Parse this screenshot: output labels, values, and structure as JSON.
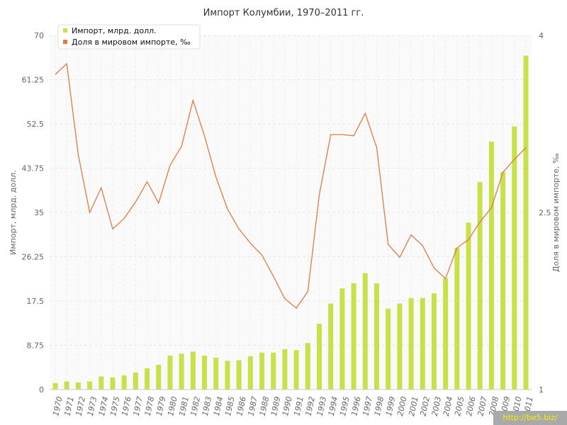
{
  "chart_data": {
    "type": "bar",
    "title": "Импорт Колумбии, 1970–2011 гг.",
    "ylabel_left": "Импорт, млрд. долл.",
    "ylabel_right": "Доля в мировом импорте, ‰",
    "ylim_left": [
      0,
      70
    ],
    "ylim_right": [
      1,
      4
    ],
    "yticks_left": [
      "0",
      "8.75",
      "17.5",
      "26.25",
      "35",
      "43.75",
      "52.5",
      "61.25",
      "70"
    ],
    "yticks_right": [
      "1",
      "2.5",
      "4"
    ],
    "grid": true,
    "legend_position": "top-left",
    "categories": [
      "1970",
      "1971",
      "1972",
      "1973",
      "1974",
      "1975",
      "1976",
      "1977",
      "1978",
      "1979",
      "1980",
      "1981",
      "1982",
      "1983",
      "1984",
      "1985",
      "1986",
      "1987",
      "1988",
      "1989",
      "1990",
      "1991",
      "1992",
      "1993",
      "1994",
      "1995",
      "1996",
      "1997",
      "1998",
      "1999",
      "2000",
      "2001",
      "2002",
      "2003",
      "2004",
      "2005",
      "2006",
      "2007",
      "2008",
      "2009",
      "2010",
      "2011"
    ],
    "series": [
      {
        "name": "Импорт, млрд. долл.",
        "type": "bar",
        "axis": "left",
        "color": "#c8e04a",
        "values": [
          1.3,
          1.6,
          1.4,
          1.6,
          2.6,
          2.4,
          2.8,
          3.4,
          4.2,
          4.9,
          6.7,
          7.1,
          7.5,
          6.7,
          6.3,
          5.7,
          5.8,
          6.6,
          7.3,
          7.3,
          8.0,
          7.8,
          9.2,
          13.0,
          17.0,
          20.0,
          21.0,
          23.0,
          21.0,
          16.0,
          17.0,
          18.1,
          18.1,
          19.0,
          22.0,
          28.0,
          33.0,
          41.0,
          49.0,
          43.0,
          52.0,
          66.0
        ]
      },
      {
        "name": "Доля в мировом импорте, ‰",
        "type": "line",
        "axis": "right",
        "color": "#e07a47",
        "values": [
          3.67,
          3.76,
          2.99,
          2.5,
          2.71,
          2.36,
          2.45,
          2.59,
          2.76,
          2.58,
          2.9,
          3.06,
          3.45,
          3.15,
          2.8,
          2.53,
          2.36,
          2.24,
          2.14,
          1.96,
          1.77,
          1.69,
          1.83,
          2.65,
          3.16,
          3.16,
          3.15,
          3.34,
          3.05,
          2.23,
          2.12,
          2.31,
          2.22,
          2.03,
          1.94,
          2.2,
          2.27,
          2.42,
          2.54,
          2.84,
          2.95,
          3.05
        ]
      }
    ]
  },
  "watermark": "http://be5.biz/"
}
